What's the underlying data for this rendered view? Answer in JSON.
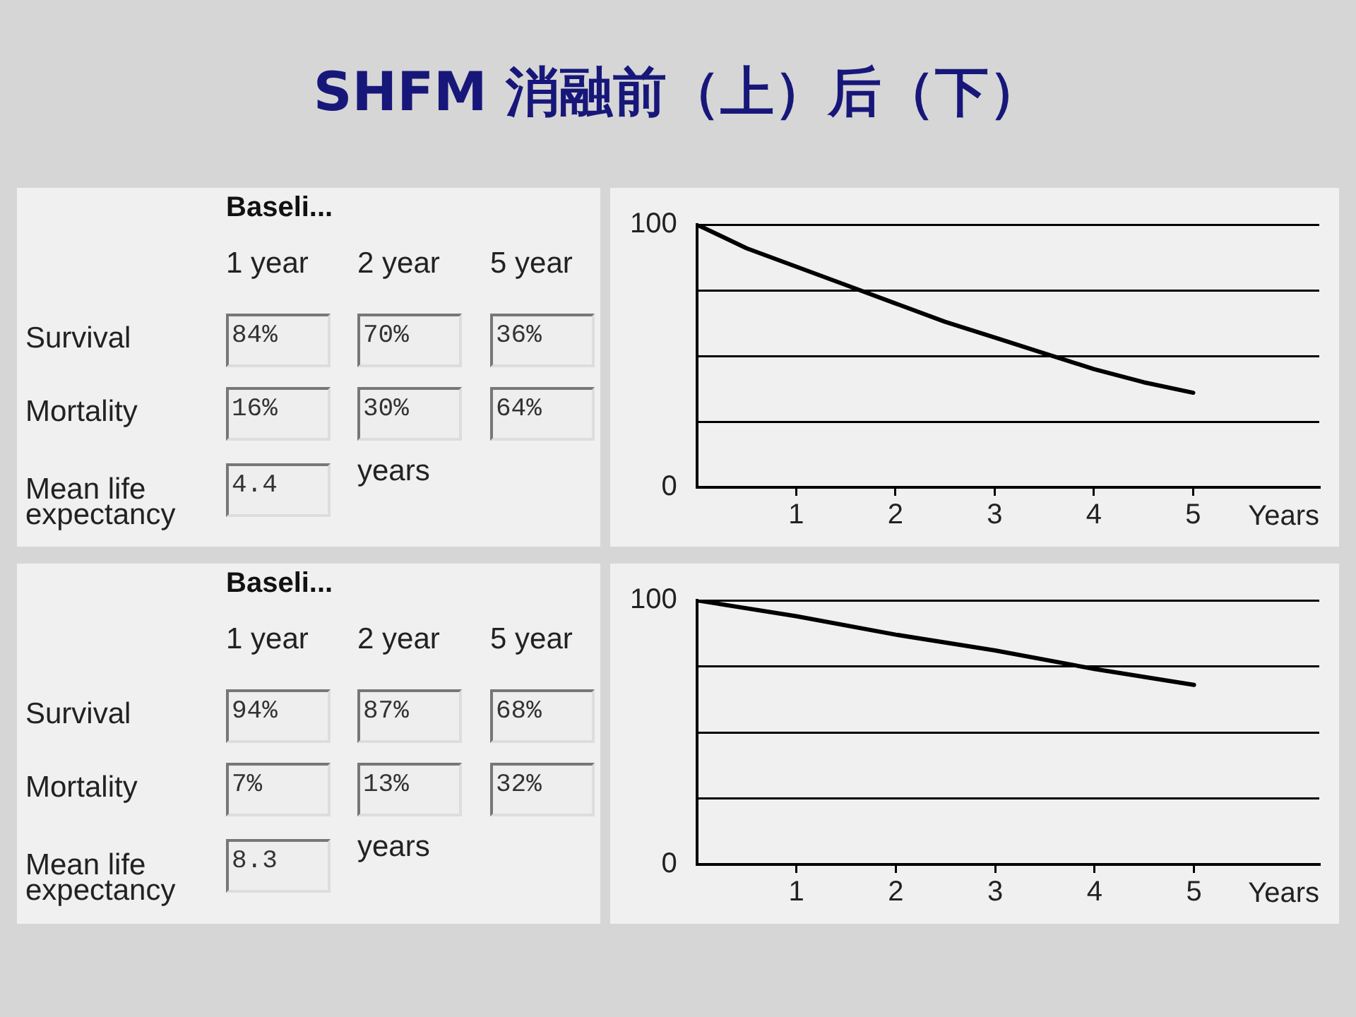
{
  "chart_data": [
    {
      "type": "other",
      "title": "SHFM 消融前（上）后（下）",
      "subtitle": "Baseli...",
      "categories": [
        "1 year",
        "2 year",
        "5 year"
      ],
      "y_categories": [
        "Survival",
        "Mortality",
        "Mean life expectancy"
      ],
      "cell_labels": [
        [
          "84%",
          "70%",
          "36%"
        ],
        [
          "16%",
          "30%",
          "64%"
        ],
        [
          "4.4",
          null,
          null
        ]
      ],
      "annotations": [
        "years"
      ]
    },
    {
      "type": "line",
      "xlabel": "Years",
      "x": [
        0,
        0.5,
        1,
        1.5,
        2,
        2.5,
        3,
        3.5,
        4,
        4.5,
        5
      ],
      "values": [
        100,
        91,
        84,
        77,
        70,
        63,
        57,
        51,
        45,
        40,
        36
      ],
      "color": "#000000",
      "xlim": [
        0,
        6.27
      ],
      "xticks": [
        1,
        2,
        3,
        4,
        5
      ],
      "ylim": [
        0,
        100
      ],
      "yticks": [
        {
          "value": 0,
          "label": "0"
        },
        {
          "value": 25,
          "label": null
        },
        {
          "value": 50,
          "label": null
        },
        {
          "value": 75,
          "label": null
        },
        100
      ],
      "grid": "y"
    },
    {
      "type": "other",
      "subtitle": "Baseli...",
      "categories": [
        "1 year",
        "2 year",
        "5 year"
      ],
      "y_categories": [
        "Survival",
        "Mortality",
        "Mean life expectancy"
      ],
      "cell_labels": [
        [
          "94%",
          "87%",
          "68%"
        ],
        [
          "7%",
          "13%",
          "32%"
        ],
        [
          "8.3",
          null,
          null
        ]
      ],
      "annotations": [
        "years"
      ]
    },
    {
      "type": "line",
      "xlabel": "Years",
      "x": [
        0,
        1,
        2,
        3,
        4,
        5
      ],
      "values": [
        100,
        94,
        87,
        81,
        74,
        68
      ],
      "color": "#000000",
      "xlim": [
        0,
        6.26
      ],
      "xticks": [
        1,
        2,
        3,
        4,
        5
      ],
      "ylim": [
        0,
        100
      ],
      "yticks": [
        {
          "value": 0,
          "label": "0"
        },
        {
          "value": 25,
          "label": null
        },
        {
          "value": 50,
          "label": null
        },
        {
          "value": 75,
          "label": null
        },
        100
      ],
      "grid": "y"
    }
  ]
}
